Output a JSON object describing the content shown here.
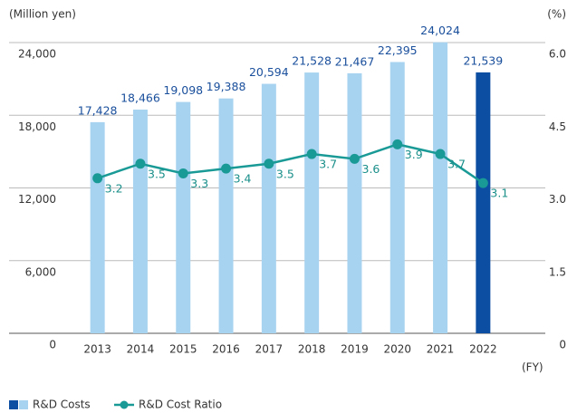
{
  "chart_data": {
    "type": "bar",
    "y_unit": "(Million yen)",
    "y2_unit": "(%)",
    "x_unit": "(FY)",
    "categories": [
      "2013",
      "2014",
      "2015",
      "2016",
      "2017",
      "2018",
      "2019",
      "2020",
      "2021",
      "2022"
    ],
    "series": [
      {
        "name": "R&D Costs",
        "type": "bar",
        "color": "#a8d3f0",
        "bar_colors": [
          "#a8d3f0",
          "#a8d3f0",
          "#a8d3f0",
          "#a8d3f0",
          "#a8d3f0",
          "#a8d3f0",
          "#a8d3f0",
          "#a8d3f0",
          "#a8d3f0",
          "#0b4ea2"
        ],
        "values": [
          17428,
          18466,
          19098,
          19388,
          20594,
          21528,
          21467,
          22395,
          24024,
          21539
        ],
        "value_labels": [
          "17,428",
          "18,466",
          "19,098",
          "19,388",
          "20,594",
          "21,528",
          "21,467",
          "22,395",
          "24,024",
          "21,539"
        ]
      },
      {
        "name": "R&D Cost Ratio",
        "type": "line",
        "axis": "y2",
        "color": "#1a9a96",
        "values": [
          3.2,
          3.5,
          3.3,
          3.4,
          3.5,
          3.7,
          3.6,
          3.9,
          3.7,
          3.1
        ]
      }
    ],
    "ylim": [
      0,
      24000
    ],
    "yticks": [
      0,
      {
        "value": 6000,
        "label": "6,000"
      },
      {
        "value": 12000,
        "label": "12,000"
      },
      {
        "value": 18000,
        "label": "18,000"
      },
      {
        "value": 24000,
        "label": "24,000"
      }
    ],
    "y2lim": [
      0,
      6
    ],
    "y2ticks": [
      0,
      {
        "value": 1.5,
        "label": "1.5"
      },
      {
        "value": 3,
        "label": "3.0"
      },
      {
        "value": 4.5,
        "label": "4.5"
      },
      {
        "value": 6,
        "label": "6.0"
      }
    ],
    "grid": true
  }
}
